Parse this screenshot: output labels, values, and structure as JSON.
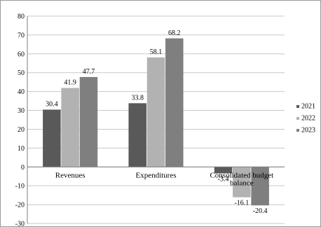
{
  "chart_data": {
    "type": "bar",
    "categories": [
      "Revenues",
      "Expenditures",
      "Consolidated budget balance"
    ],
    "series": [
      {
        "name": "2021",
        "values": [
          30.4,
          33.8,
          -3.4
        ],
        "color": "#595959"
      },
      {
        "name": "2022",
        "values": [
          41.9,
          58.1,
          -16.1
        ],
        "color": "#b2b2b2"
      },
      {
        "name": "2023",
        "values": [
          47.7,
          68.2,
          -20.4
        ],
        "color": "#7f7f7f"
      }
    ],
    "data_labels": [
      [
        "30.4",
        "33.8",
        "-3.4"
      ],
      [
        "41.9",
        "58.1",
        "-16.1"
      ],
      [
        "47.7",
        "68.2",
        "-20.4"
      ]
    ],
    "ylim": [
      -30,
      80
    ],
    "yticks": [
      -30,
      -20,
      -10,
      0,
      10,
      20,
      30,
      40,
      50,
      60,
      70,
      80
    ],
    "grid": true,
    "legend_position": "right",
    "title": "",
    "xlabel": "",
    "ylabel": ""
  }
}
